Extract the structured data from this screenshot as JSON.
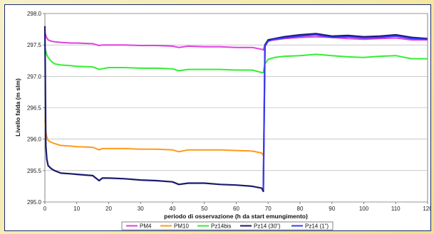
{
  "chart_data": {
    "type": "line",
    "xlabel": "periodo di osservazione (h da start emungimento)",
    "ylabel": "Livello falda (m slm)",
    "xlim": [
      0,
      120
    ],
    "ylim": [
      295.0,
      298.0
    ],
    "xticks": [
      0,
      10,
      20,
      30,
      40,
      50,
      60,
      70,
      80,
      90,
      100,
      110,
      120
    ],
    "yticks": [
      295.0,
      295.5,
      296.0,
      296.5,
      297.0,
      297.5,
      298.0
    ],
    "ytick_labels": [
      "295.0",
      "295.5",
      "296.0",
      "296.5",
      "297.0",
      "297.5",
      "298.0"
    ],
    "grid": "horizontal",
    "legend_position": "bottom",
    "series": [
      {
        "name": "PM4",
        "color": "#e040e0",
        "x": [
          0,
          0.5,
          1,
          2,
          3,
          5,
          8,
          10,
          15,
          17,
          18,
          20,
          25,
          30,
          35,
          40,
          42,
          45,
          50,
          55,
          60,
          65,
          68,
          68.5,
          69,
          70,
          72,
          75,
          80,
          85,
          90,
          95,
          100,
          105,
          110,
          115,
          120
        ],
        "y": [
          297.7,
          297.62,
          297.58,
          297.56,
          297.55,
          297.54,
          297.53,
          297.53,
          297.52,
          297.49,
          297.5,
          297.5,
          297.5,
          297.49,
          297.49,
          297.48,
          297.46,
          297.48,
          297.47,
          297.47,
          297.46,
          297.46,
          297.43,
          297.42,
          297.5,
          297.57,
          297.58,
          297.6,
          297.62,
          297.63,
          297.62,
          297.6,
          297.59,
          297.6,
          297.61,
          297.58,
          297.58
        ]
      },
      {
        "name": "PM10",
        "color": "#ff9a1a",
        "x": [
          0,
          0.3,
          0.6,
          1,
          2,
          3,
          5,
          8,
          10,
          15,
          17,
          18,
          20,
          25,
          30,
          35,
          40,
          42,
          45,
          50,
          55,
          60,
          65,
          68,
          68.5
        ],
        "y": [
          296.3,
          296.12,
          296.03,
          295.98,
          295.95,
          295.93,
          295.9,
          295.89,
          295.88,
          295.87,
          295.83,
          295.85,
          295.85,
          295.85,
          295.84,
          295.84,
          295.83,
          295.8,
          295.83,
          295.83,
          295.83,
          295.82,
          295.81,
          295.78,
          295.74
        ]
      },
      {
        "name": "Pz14bis",
        "color": "#33ee33",
        "x": [
          0,
          0.5,
          1,
          2,
          3,
          5,
          8,
          10,
          15,
          17,
          18,
          20,
          25,
          30,
          35,
          40,
          42,
          45,
          50,
          55,
          60,
          65,
          68,
          68.5,
          69,
          70,
          72,
          75,
          80,
          85,
          90,
          95,
          100,
          105,
          110,
          115,
          120
        ],
        "y": [
          297.45,
          297.36,
          297.3,
          297.24,
          297.2,
          297.18,
          297.17,
          297.16,
          297.15,
          297.11,
          297.12,
          297.14,
          297.14,
          297.13,
          297.13,
          297.12,
          297.09,
          297.11,
          297.11,
          297.11,
          297.1,
          297.1,
          297.06,
          297.06,
          297.2,
          297.27,
          297.3,
          297.32,
          297.33,
          297.35,
          297.33,
          297.31,
          297.3,
          297.32,
          297.33,
          297.28,
          297.28
        ]
      },
      {
        "name": "Pz14 (30\")",
        "color": "#1a1a6e",
        "x": [
          0,
          0.3,
          0.6,
          1,
          2,
          3,
          5,
          8,
          10,
          15,
          17,
          18,
          20,
          25,
          30,
          35,
          40,
          42,
          45,
          50,
          55,
          60,
          65,
          68,
          68.5,
          69,
          70,
          72,
          75,
          80,
          85,
          90,
          95,
          100,
          105,
          110,
          115,
          120
        ],
        "y": [
          297.8,
          295.9,
          295.68,
          295.58,
          295.53,
          295.5,
          295.46,
          295.45,
          295.44,
          295.42,
          295.34,
          295.38,
          295.38,
          295.37,
          295.35,
          295.34,
          295.32,
          295.28,
          295.3,
          295.3,
          295.28,
          295.27,
          295.25,
          295.22,
          295.17,
          297.5,
          297.58,
          297.6,
          297.63,
          297.66,
          297.68,
          297.64,
          297.65,
          297.63,
          297.64,
          297.66,
          297.62,
          297.6
        ]
      },
      {
        "name": "Pz14 (1\")",
        "color": "#3a3aff",
        "x": [
          68.5,
          69,
          70,
          72,
          75,
          80,
          85,
          90,
          95,
          100,
          105,
          110,
          115,
          120
        ],
        "y": [
          295.2,
          297.48,
          297.56,
          297.59,
          297.61,
          297.64,
          297.66,
          297.62,
          297.63,
          297.61,
          297.62,
          297.64,
          297.6,
          297.59
        ]
      }
    ]
  }
}
